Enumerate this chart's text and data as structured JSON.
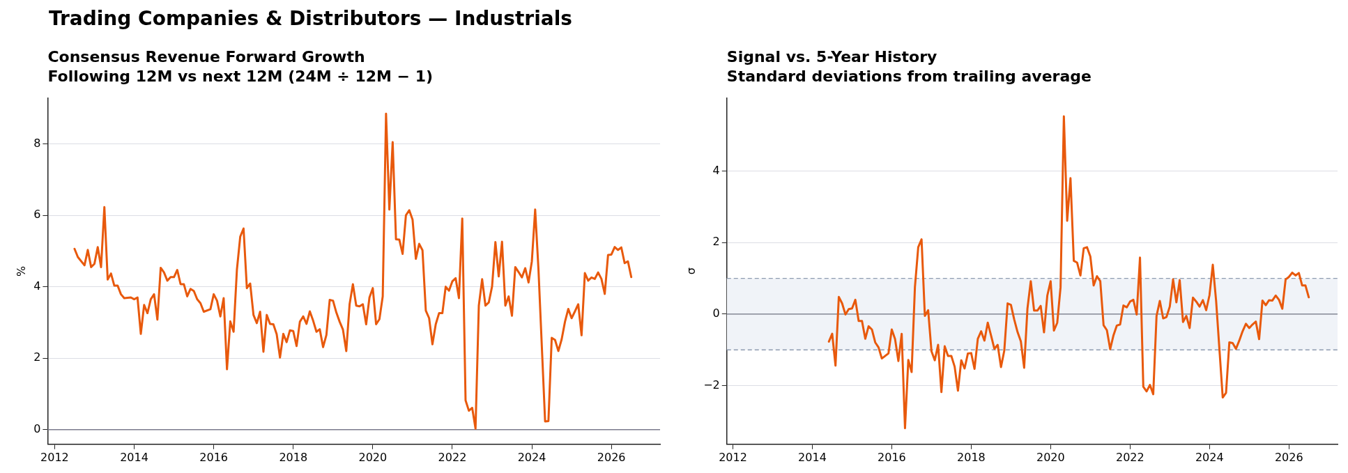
{
  "chart_data": [
    {
      "type": "line",
      "title": "Consensus Revenue Forward Growth",
      "subtitle": "Following 12M vs next 12M (24M ÷ 12M − 1)",
      "ylabel": "%",
      "annotations": [
        "Trading Companies & Distributors — Industrials"
      ],
      "series": [
        {
          "color": "#e8590c",
          "x": [
            "2012-07",
            "2012-08",
            "2012-10",
            "2012-11",
            "2012-12",
            "2013-01",
            "2013-02",
            "2013-03",
            "2013-04",
            "2013-05",
            "2013-06",
            "2013-07",
            "2013-08",
            "2013-09",
            "2013-10",
            "2013-12",
            "2014-01",
            "2014-02",
            "2014-03",
            "2014-04",
            "2014-05",
            "2014-06",
            "2014-07",
            "2014-08",
            "2014-09",
            "2014-10",
            "2014-11",
            "2014-12",
            "2015-01",
            "2015-02",
            "2015-03",
            "2015-04",
            "2015-05",
            "2015-06",
            "2015-07",
            "2015-08",
            "2015-09",
            "2015-10",
            "2015-12",
            "2016-01",
            "2016-02",
            "2016-03",
            "2016-04",
            "2016-05",
            "2016-06",
            "2016-07",
            "2016-08",
            "2016-09",
            "2016-10",
            "2016-11",
            "2016-12",
            "2017-01",
            "2017-02",
            "2017-03",
            "2017-04",
            "2017-05",
            "2017-06",
            "2017-07",
            "2017-08",
            "2017-09",
            "2017-10",
            "2017-11",
            "2017-12",
            "2018-01",
            "2018-02",
            "2018-03",
            "2018-04",
            "2018-05",
            "2018-06",
            "2018-07",
            "2018-08",
            "2018-09",
            "2018-10",
            "2018-11",
            "2018-12",
            "2019-01",
            "2019-02",
            "2019-03",
            "2019-04",
            "2019-05",
            "2019-06",
            "2019-07",
            "2019-08",
            "2019-09",
            "2019-10",
            "2019-11",
            "2019-12",
            "2020-01",
            "2020-02",
            "2020-03",
            "2020-04",
            "2020-05",
            "2020-06",
            "2020-07",
            "2020-08",
            "2020-09",
            "2020-10",
            "2020-11",
            "2020-12",
            "2021-01",
            "2021-02",
            "2021-03",
            "2021-04",
            "2021-05",
            "2021-06",
            "2021-07",
            "2021-08",
            "2021-09",
            "2021-10",
            "2021-11",
            "2021-12",
            "2022-01",
            "2022-02",
            "2022-03",
            "2022-04",
            "2022-05",
            "2022-06",
            "2022-07",
            "2022-08",
            "2022-09",
            "2022-10",
            "2022-11",
            "2022-12",
            "2023-01",
            "2023-02",
            "2023-03",
            "2023-04",
            "2023-05",
            "2023-06",
            "2023-07",
            "2023-08",
            "2023-09",
            "2023-10",
            "2023-11",
            "2023-12",
            "2024-01",
            "2024-02",
            "2024-03",
            "2024-05",
            "2024-06",
            "2024-07",
            "2024-08",
            "2024-09",
            "2024-10",
            "2024-11",
            "2024-12",
            "2025-01",
            "2025-02",
            "2025-03",
            "2025-04",
            "2025-05",
            "2025-06",
            "2025-07",
            "2025-08",
            "2025-09",
            "2025-10",
            "2025-11",
            "2025-12",
            "2026-01",
            "2026-02",
            "2026-03",
            "2026-04",
            "2026-05",
            "2026-06",
            "2026-07"
          ],
          "values": [
            5.06,
            4.83,
            4.6,
            5.03,
            4.55,
            4.64,
            5.11,
            4.55,
            6.23,
            4.2,
            4.37,
            4.03,
            4.03,
            3.79,
            3.68,
            3.7,
            3.65,
            3.7,
            2.68,
            3.49,
            3.26,
            3.65,
            3.79,
            3.08,
            4.53,
            4.4,
            4.17,
            4.27,
            4.27,
            4.47,
            4.07,
            4.07,
            3.73,
            3.94,
            3.88,
            3.65,
            3.54,
            3.3,
            3.37,
            3.79,
            3.61,
            3.17,
            3.68,
            1.69,
            3.03,
            2.74,
            4.48,
            5.4,
            5.63,
            3.96,
            4.09,
            3.21,
            2.98,
            3.3,
            2.18,
            3.21,
            2.96,
            2.95,
            2.67,
            2.02,
            2.68,
            2.45,
            2.78,
            2.76,
            2.34,
            3.02,
            3.17,
            2.96,
            3.31,
            3.05,
            2.74,
            2.81,
            2.31,
            2.65,
            3.63,
            3.61,
            3.28,
            3.02,
            2.8,
            2.2,
            3.51,
            4.07,
            3.47,
            3.45,
            3.51,
            2.95,
            3.7,
            3.96,
            2.95,
            3.09,
            3.73,
            8.84,
            6.16,
            8.05,
            5.33,
            5.32,
            4.92,
            6.0,
            6.14,
            5.88,
            4.78,
            5.2,
            5.02,
            3.33,
            3.12,
            2.39,
            2.95,
            3.26,
            3.26,
            4.0,
            3.89,
            4.15,
            4.24,
            3.68,
            5.91,
            0.82,
            0.53,
            0.61,
            0.03,
            3.47,
            4.21,
            3.47,
            3.56,
            4.01,
            5.25,
            4.29,
            5.26,
            3.47,
            3.73,
            3.19,
            4.55,
            4.41,
            4.26,
            4.52,
            4.12,
            4.71,
            6.16,
            4.48,
            0.23,
            0.24,
            2.57,
            2.51,
            2.2,
            2.53,
            3.02,
            3.38,
            3.12,
            3.31,
            3.51,
            2.64,
            4.38,
            4.17,
            4.26,
            4.22,
            4.4,
            4.22,
            3.8,
            4.89,
            4.9,
            5.11,
            5.03,
            5.1,
            4.66,
            4.71,
            4.27
          ]
        }
      ],
      "xlim": [
        "2011-10-28",
        "2027-03-22"
      ],
      "xticks": [
        "2012",
        "2014",
        "2016",
        "2018",
        "2020",
        "2022",
        "2024",
        "2026"
      ],
      "ylim": [
        -0.41,
        9.28
      ],
      "yticks": [
        0,
        2,
        4,
        6,
        8
      ],
      "ref_lines": [
        {
          "axis": "y",
          "value": 0,
          "color": "#7a7a8c"
        }
      ],
      "grid": "y",
      "legend": false,
      "marker": "none",
      "line_style": "solid"
    },
    {
      "type": "line",
      "title": "Signal vs. 5-Year History",
      "subtitle": "Standard deviations from trailing average",
      "ylabel": "σ",
      "series": [
        {
          "color": "#e8590c",
          "x": [
            "2014-06",
            "2014-07",
            "2014-08",
            "2014-09",
            "2014-10",
            "2014-11",
            "2014-12",
            "2015-01",
            "2015-02",
            "2015-03",
            "2015-04",
            "2015-05",
            "2015-06",
            "2015-07",
            "2015-08",
            "2015-09",
            "2015-10",
            "2015-12",
            "2016-01",
            "2016-02",
            "2016-03",
            "2016-04",
            "2016-05",
            "2016-06",
            "2016-07",
            "2016-08",
            "2016-09",
            "2016-10",
            "2016-11",
            "2016-12",
            "2017-01",
            "2017-02",
            "2017-03",
            "2017-04",
            "2017-05",
            "2017-06",
            "2017-07",
            "2017-08",
            "2017-09",
            "2017-10",
            "2017-11",
            "2017-12",
            "2018-01",
            "2018-02",
            "2018-03",
            "2018-04",
            "2018-05",
            "2018-06",
            "2018-07",
            "2018-08",
            "2018-09",
            "2018-10",
            "2018-11",
            "2018-12",
            "2019-01",
            "2019-02",
            "2019-03",
            "2019-04",
            "2019-05",
            "2019-06",
            "2019-07",
            "2019-08",
            "2019-09",
            "2019-10",
            "2019-11",
            "2019-12",
            "2020-01",
            "2020-02",
            "2020-03",
            "2020-04",
            "2020-05",
            "2020-06",
            "2020-07",
            "2020-08",
            "2020-09",
            "2020-10",
            "2020-11",
            "2020-12",
            "2021-01",
            "2021-02",
            "2021-03",
            "2021-04",
            "2021-05",
            "2021-06",
            "2021-07",
            "2021-08",
            "2021-09",
            "2021-10",
            "2021-11",
            "2021-12",
            "2022-01",
            "2022-02",
            "2022-03",
            "2022-04",
            "2022-05",
            "2022-06",
            "2022-07",
            "2022-08",
            "2022-09",
            "2022-10",
            "2022-11",
            "2022-12",
            "2023-01",
            "2023-02",
            "2023-03",
            "2023-04",
            "2023-05",
            "2023-06",
            "2023-07",
            "2023-08",
            "2023-09",
            "2023-10",
            "2023-11",
            "2023-12",
            "2024-01",
            "2024-02",
            "2024-03",
            "2024-05",
            "2024-06",
            "2024-07",
            "2024-08",
            "2024-09",
            "2024-10",
            "2024-11",
            "2024-12",
            "2025-01",
            "2025-02",
            "2025-03",
            "2025-04",
            "2025-05",
            "2025-06",
            "2025-07",
            "2025-08",
            "2025-09",
            "2025-10",
            "2025-11",
            "2025-12",
            "2026-01",
            "2026-02",
            "2026-03",
            "2026-04",
            "2026-05",
            "2026-06",
            "2026-07"
          ],
          "values": [
            -0.77,
            -0.55,
            -1.44,
            0.48,
            0.3,
            -0.01,
            0.14,
            0.16,
            0.4,
            -0.19,
            -0.19,
            -0.69,
            -0.34,
            -0.43,
            -0.79,
            -0.93,
            -1.24,
            -1.1,
            -0.43,
            -0.7,
            -1.31,
            -0.55,
            -3.19,
            -1.28,
            -1.62,
            0.76,
            1.87,
            2.09,
            -0.05,
            0.11,
            -1.04,
            -1.29,
            -0.86,
            -2.18,
            -0.9,
            -1.17,
            -1.17,
            -1.47,
            -2.14,
            -1.29,
            -1.52,
            -1.1,
            -1.09,
            -1.53,
            -0.69,
            -0.48,
            -0.74,
            -0.24,
            -0.6,
            -0.97,
            -0.86,
            -1.48,
            -1.02,
            0.3,
            0.26,
            -0.15,
            -0.5,
            -0.76,
            -1.5,
            0.16,
            0.92,
            0.1,
            0.1,
            0.23,
            -0.51,
            0.52,
            0.92,
            -0.46,
            -0.24,
            0.75,
            5.53,
            2.61,
            3.8,
            1.49,
            1.44,
            1.08,
            1.84,
            1.87,
            1.61,
            0.8,
            1.06,
            0.92,
            -0.31,
            -0.45,
            -0.98,
            -0.59,
            -0.32,
            -0.29,
            0.24,
            0.19,
            0.35,
            0.4,
            -0.01,
            1.58,
            -2.03,
            -2.16,
            -1.98,
            -2.24,
            -0.05,
            0.37,
            -0.12,
            -0.08,
            0.21,
            0.97,
            0.33,
            0.95,
            -0.22,
            -0.05,
            -0.39,
            0.46,
            0.35,
            0.21,
            0.39,
            0.11,
            0.53,
            1.38,
            0.37,
            -2.33,
            -2.2,
            -0.79,
            -0.81,
            -0.97,
            -0.74,
            -0.48,
            -0.27,
            -0.39,
            -0.29,
            -0.21,
            -0.7,
            0.38,
            0.25,
            0.39,
            0.38,
            0.52,
            0.4,
            0.15,
            0.97,
            1.04,
            1.16,
            1.08,
            1.15,
            0.8,
            0.8,
            0.47
          ]
        }
      ],
      "xlim": [
        "2011-11-06",
        "2027-03-22"
      ],
      "xticks": [
        "2012",
        "2014",
        "2016",
        "2018",
        "2020",
        "2022",
        "2024",
        "2026"
      ],
      "ylim": [
        -3.64,
        6.04
      ],
      "yticks": [
        -2,
        0,
        2,
        4
      ],
      "bands": [
        {
          "axis": "y",
          "from": -1,
          "to": 1,
          "color": "#f0f3f8"
        }
      ],
      "ref_lines": [
        {
          "axis": "y",
          "value": 0,
          "color": "#6e7280"
        },
        {
          "axis": "y",
          "value": 1,
          "color": "#8e9bb0",
          "line_style": "dashed"
        },
        {
          "axis": "y",
          "value": -1,
          "color": "#8e9bb0",
          "line_style": "dashed"
        }
      ],
      "grid": "y",
      "legend": false,
      "marker": "none",
      "line_style": "solid"
    }
  ]
}
